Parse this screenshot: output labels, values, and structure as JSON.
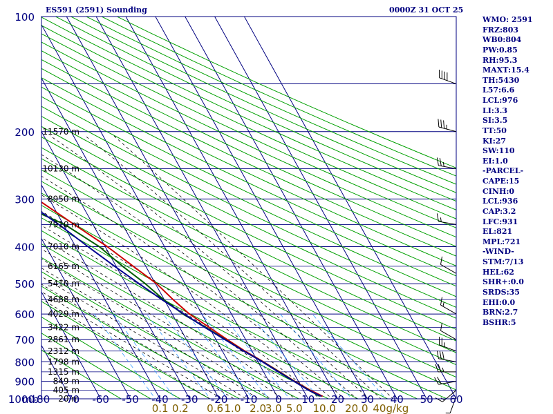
{
  "header": {
    "station": "ES591 (2591) Sounding",
    "time": "0000Z 31 OCT 25"
  },
  "colors": {
    "frame": "#000080",
    "isotherm": "#000080",
    "dry_adiabat": "#00a000",
    "moist_adiabat": "#000000",
    "mixing_ratio": "#3399ff",
    "temperature": "#cc0000",
    "dewpoint": "#006000",
    "parcel": "#000090",
    "mixing_ratio_label": "#806000"
  },
  "panel": {
    "stats": [
      "WMO: 2591",
      "FRZ:803",
      "WB0:804",
      "PW:0.85",
      "RH:95.3",
      "MAXT:15.4",
      "TH:5430",
      "L57:6.6",
      "LCL:976",
      "LI:3.3",
      "SI:3.5",
      "TT:50",
      "KI:27",
      "SW:110",
      "EI:1.0",
      "-PARCEL-",
      "CAPE:15",
      "CINH:0",
      "LCL:936",
      "CAP:3.2",
      "LFC:931",
      "EL:821",
      "MPL:721",
      "-WIND-",
      "STM:7/13",
      "HEL:62",
      "SHR+:0.0",
      "SRDS:35",
      "EHI:0.0",
      "BRN:2.7",
      "BSHR:5"
    ]
  },
  "chart_data": {
    "type": "skewt",
    "title": "ES591 (2591) Sounding",
    "pressure_unit": "mb",
    "pressure_levels": [
      100,
      200,
      300,
      400,
      500,
      600,
      700,
      800,
      900,
      1000
    ],
    "temperature_ticks": [
      "-80",
      "-70",
      "-60",
      "-50",
      "-40",
      "-30",
      "-20",
      "-10",
      "0",
      "10",
      "20",
      "30",
      "40",
      "50",
      "60"
    ],
    "temperature_range": [
      -80,
      60
    ],
    "pressure_range": [
      100,
      1000
    ],
    "height_labels": [
      {
        "p": 200,
        "text": "11570 m"
      },
      {
        "p": 250,
        "text": "10130 m"
      },
      {
        "p": 300,
        "text": "8950 m"
      },
      {
        "p": 350,
        "text": "7910 m"
      },
      {
        "p": 400,
        "text": "7010 m"
      },
      {
        "p": 450,
        "text": "6165 m"
      },
      {
        "p": 500,
        "text": "5410 m"
      },
      {
        "p": 550,
        "text": "4688 m"
      },
      {
        "p": 600,
        "text": "4029 m"
      },
      {
        "p": 650,
        "text": "3422 m"
      },
      {
        "p": 700,
        "text": "2861 m"
      },
      {
        "p": 750,
        "text": "2312 m"
      },
      {
        "p": 800,
        "text": "1798 m"
      },
      {
        "p": 850,
        "text": "1315 m"
      },
      {
        "p": 900,
        "text": "849 m"
      },
      {
        "p": 950,
        "text": "405 m"
      },
      {
        "p": 1000,
        "text": "20 m"
      }
    ],
    "mixing_ratio_labels": [
      "0.1",
      "0.2",
      "0.6",
      "1.0",
      "2.0",
      "3.0",
      "5.0",
      "10.0",
      "20.0",
      "40g/kg"
    ],
    "mixing_ratio_values": [
      0.1,
      0.2,
      0.6,
      1.0,
      2.0,
      3.0,
      5.0,
      10.0,
      20.0,
      40.0
    ],
    "mixing_ratio_top_p": 600,
    "series": [
      {
        "name": "Temperature",
        "points": [
          {
            "p": 985,
            "t": 15.4
          },
          {
            "p": 950,
            "t": 12.4
          },
          {
            "p": 900,
            "t": 8.8
          },
          {
            "p": 850,
            "t": 5.4
          },
          {
            "p": 800,
            "t": 1.8
          },
          {
            "p": 750,
            "t": -2.4
          },
          {
            "p": 700,
            "t": -6.2
          },
          {
            "p": 650,
            "t": -10.0
          },
          {
            "p": 600,
            "t": -14.2
          },
          {
            "p": 550,
            "t": -17.0
          },
          {
            "p": 500,
            "t": -19.6
          },
          {
            "p": 450,
            "t": -24.2
          },
          {
            "p": 400,
            "t": -29.3
          },
          {
            "p": 350,
            "t": -36.3
          },
          {
            "p": 300,
            "t": -44.2
          },
          {
            "p": 250,
            "t": -46.9
          },
          {
            "p": 200,
            "t": -50.0
          }
        ]
      },
      {
        "name": "Dewpoint",
        "points": [
          {
            "p": 985,
            "t": 14.4
          },
          {
            "p": 950,
            "t": 12.0
          },
          {
            "p": 900,
            "t": 8.6
          },
          {
            "p": 850,
            "t": 5.2
          },
          {
            "p": 800,
            "t": 1.6
          },
          {
            "p": 750,
            "t": -2.8
          },
          {
            "p": 700,
            "t": -6.8
          },
          {
            "p": 650,
            "t": -11.2
          },
          {
            "p": 600,
            "t": -16.4
          },
          {
            "p": 550,
            "t": -20.2
          },
          {
            "p": 500,
            "t": -23.4
          },
          {
            "p": 450,
            "t": -27.8
          },
          {
            "p": 400,
            "t": -32.0
          },
          {
            "p": 350,
            "t": -39.5
          },
          {
            "p": 300,
            "t": -54.0
          },
          {
            "p": 250,
            "t": -69.0
          },
          {
            "p": 210,
            "t": -73.0
          }
        ]
      },
      {
        "name": "Parcel",
        "points": [
          {
            "p": 985,
            "t": 15.0
          },
          {
            "p": 950,
            "t": 11.8
          },
          {
            "p": 900,
            "t": 8.5
          },
          {
            "p": 850,
            "t": 5.0
          },
          {
            "p": 800,
            "t": 1.5
          },
          {
            "p": 750,
            "t": -2.8
          },
          {
            "p": 700,
            "t": -7.0
          },
          {
            "p": 650,
            "t": -11.5
          },
          {
            "p": 600,
            "t": -16.0
          },
          {
            "p": 550,
            "t": -20.8
          },
          {
            "p": 500,
            "t": -25.5
          },
          {
            "p": 450,
            "t": -30.5
          },
          {
            "p": 400,
            "t": -35.8
          },
          {
            "p": 350,
            "t": -41.5
          },
          {
            "p": 300,
            "t": -49.0
          },
          {
            "p": 250,
            "t": -58.0
          },
          {
            "p": 200,
            "t": -70.0
          }
        ]
      }
    ],
    "wind_barbs": [
      {
        "p": 150,
        "dir": 290,
        "speed": 40
      },
      {
        "p": 200,
        "dir": 285,
        "speed": 35
      },
      {
        "p": 250,
        "dir": 280,
        "speed": 25
      },
      {
        "p": 350,
        "dir": 280,
        "speed": 15
      },
      {
        "p": 470,
        "dir": 300,
        "speed": 10
      },
      {
        "p": 600,
        "dir": 300,
        "speed": 15
      },
      {
        "p": 700,
        "dir": 300,
        "speed": 10
      },
      {
        "p": 750,
        "dir": 290,
        "speed": 25
      },
      {
        "p": 800,
        "dir": 280,
        "speed": 30
      },
      {
        "p": 850,
        "dir": 270,
        "speed": 25
      },
      {
        "p": 900,
        "dir": 260,
        "speed": 20
      },
      {
        "p": 950,
        "dir": 230,
        "speed": 15
      },
      {
        "p": 985,
        "dir": 200,
        "speed": 5
      }
    ]
  }
}
